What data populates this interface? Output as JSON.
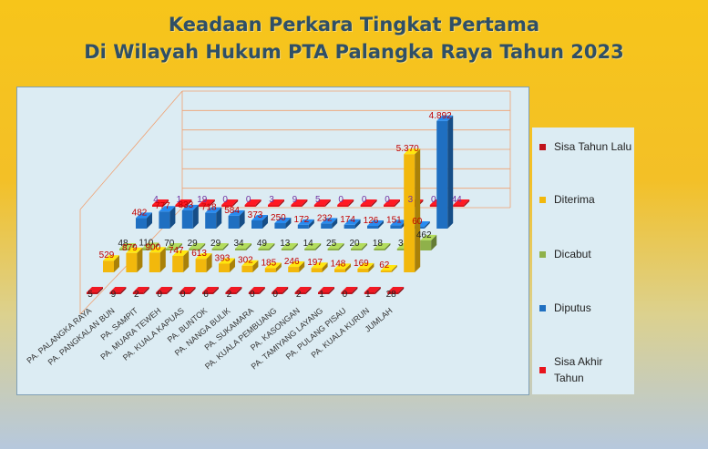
{
  "title_lines": [
    "Keadaan Perkara Tingkat Pertama",
    "Di Wilayah Hukum PTA Palangka Raya Tahun 2023"
  ],
  "chart_data": {
    "type": "bar",
    "variant": "3d-column",
    "title": "Keadaan Perkara Tingkat Pertama Di Wilayah Hukum PTA Palangka Raya Tahun 2023",
    "categories": [
      "PA. PALANGKA RAYA",
      "PA. PANGKALAN BUN",
      "PA. SAMPIT",
      "PA. MUARA TEWEH",
      "PA. KUALA KAPUAS",
      "PA. BUNTOK",
      "PA. NANGA BULIK",
      "PA. SUKAMARA",
      "PA. KUALA PEMBUANG",
      "PA. KASONGAN",
      "PA. TAMIYANG LAYANG",
      "PA. PULANG PISAU",
      "PA. KUALA KURUN",
      "JUMLAH"
    ],
    "series": [
      {
        "name": "Sisa Tahun Lalu",
        "color": "#c0141c",
        "values": [
          5,
          9,
          2,
          0,
          0,
          6,
          2,
          0,
          0,
          2,
          1,
          0,
          1,
          28
        ],
        "labels": [
          "5",
          "9",
          "2",
          "0",
          "0",
          "6",
          "2",
          "0",
          "0",
          "2",
          "1",
          "0",
          "1",
          "28"
        ]
      },
      {
        "name": "Diterima",
        "color": "#f2b80c",
        "values": [
          529,
          879,
          900,
          747,
          613,
          393,
          302,
          185,
          246,
          197,
          148,
          169,
          62,
          5370
        ],
        "labels": [
          "529",
          "879",
          "900",
          "747",
          "613",
          "393",
          "302",
          "185",
          "246",
          "197",
          "148",
          "169",
          "62",
          "5.370"
        ]
      },
      {
        "name": "Dicabut",
        "color": "#8fb14a",
        "values": [
          48,
          110,
          70,
          29,
          29,
          34,
          49,
          13,
          14,
          25,
          20,
          18,
          3,
          462
        ],
        "labels": [
          "48",
          "110",
          "70",
          "29",
          "29",
          "34",
          "49",
          "13",
          "14",
          "25",
          "20",
          "18",
          "3",
          "462"
        ]
      },
      {
        "name": "Diputus",
        "color": "#1f6fc1",
        "values": [
          482,
          777,
          833,
          718,
          584,
          373,
          250,
          172,
          232,
          174,
          126,
          151,
          60,
          4892
        ],
        "labels": [
          "482",
          "777",
          "833",
          "718",
          "584",
          "373",
          "250",
          "172",
          "232",
          "174",
          "126",
          "151",
          "60",
          "4.892"
        ]
      },
      {
        "name": "Sisa Akhir Tahun",
        "color": "#e8141c",
        "values": [
          4,
          1,
          19,
          0,
          0,
          3,
          9,
          5,
          0,
          0,
          0,
          3,
          0,
          44
        ],
        "labels": [
          "4",
          "1",
          "19",
          "0",
          "0",
          "3",
          "9",
          "5",
          "0",
          "0",
          "0",
          "3",
          "0",
          "44"
        ]
      }
    ],
    "legend_position": "right",
    "grid": true
  },
  "colors": {
    "title": "#2f4f66",
    "plot_bg": "#dcecf3",
    "grid_lines": "#f0a070",
    "value_labels": "#c00000",
    "value_labels_small": "#7030a0"
  }
}
